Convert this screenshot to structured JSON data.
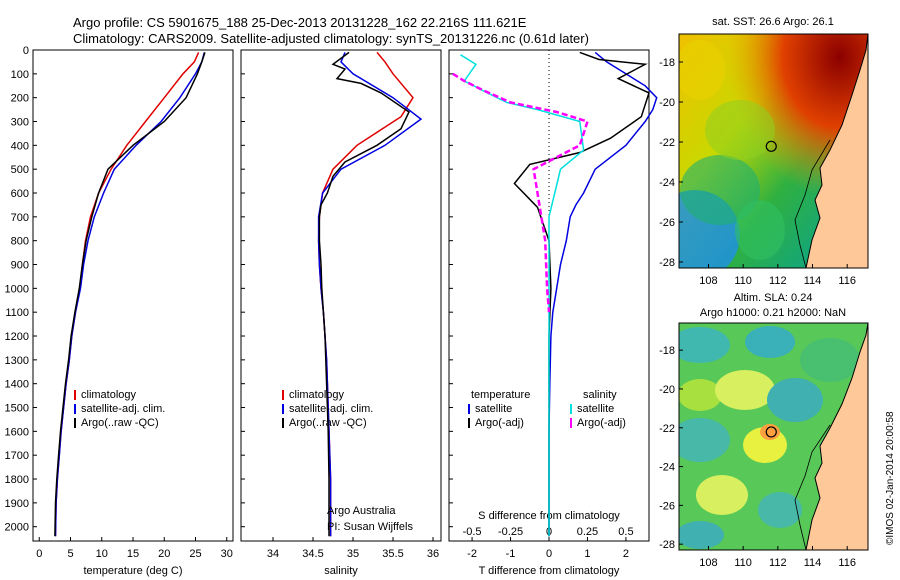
{
  "header": {
    "line1": "Argo profile: CS 5901675_188 25-Dec-2013 20131228_162 22.216S 111.621E",
    "line2": "Climatology: CARS2009. Satellite-adjusted climatology: synTS_20131226.nc (0.61d later)"
  },
  "colors": {
    "clim": "#e00000",
    "sat": "#0000e0",
    "argo": "#000000",
    "sat_s": "#00e0e0",
    "argo_s": "#ff00ff"
  },
  "chart_data": [
    {
      "type": "line",
      "xlabel": "temperature (deg C)",
      "xlim": [
        -1,
        31
      ],
      "ylim": [
        2060,
        0
      ],
      "xticks": [
        "0",
        "5",
        "10",
        "15",
        "20",
        "25",
        "30"
      ],
      "xtick_values": [
        0,
        5,
        10,
        15,
        20,
        25,
        30
      ],
      "yticks": [
        "0",
        "100",
        "200",
        "300",
        "400",
        "500",
        "600",
        "700",
        "800",
        "900",
        "1000",
        "1100",
        "1200",
        "1300",
        "1400",
        "1500",
        "1600",
        "1700",
        "1800",
        "1900",
        "2000"
      ],
      "legend": [
        "climatology",
        "satellite-adj. clim.",
        "Argo(..raw -QC)"
      ],
      "series": [
        {
          "name": "climatology",
          "x": [
            25.5,
            24.8,
            23,
            20,
            17,
            14,
            11.5,
            9.5,
            8.2,
            7.4,
            6.9,
            6.5,
            5.8,
            5.2,
            4.8,
            4.3,
            3.9,
            3.5,
            3.2,
            2.9,
            2.7,
            2.6
          ],
          "y": [
            10,
            50,
            100,
            200,
            300,
            400,
            500,
            600,
            700,
            800,
            900,
            1000,
            1100,
            1200,
            1300,
            1400,
            1500,
            1600,
            1700,
            1800,
            1900,
            2040
          ]
        },
        {
          "name": "satellite-adj. clim.",
          "x": [
            26.4,
            26,
            25,
            22.5,
            19.5,
            15.5,
            12,
            10.3,
            8.8,
            7.8,
            7.1,
            6.6,
            5.8,
            5.2,
            4.8,
            4.3,
            3.9,
            3.5,
            3.2,
            2.9,
            2.7,
            2.6
          ],
          "y": [
            10,
            50,
            100,
            200,
            300,
            400,
            500,
            600,
            700,
            800,
            900,
            1000,
            1100,
            1200,
            1300,
            1400,
            1500,
            1600,
            1700,
            1800,
            1900,
            2040
          ]
        },
        {
          "name": "Argo(..raw -QC)",
          "x": [
            26.5,
            26,
            25.3,
            23.5,
            20,
            15,
            11,
            9.5,
            8.4,
            7.5,
            6.9,
            6.4,
            5.7,
            5.1,
            4.7,
            4.2,
            3.8,
            3.4,
            3.1,
            2.8,
            2.6,
            2.5
          ],
          "y": [
            10,
            50,
            100,
            200,
            300,
            400,
            500,
            600,
            700,
            800,
            900,
            1000,
            1100,
            1200,
            1300,
            1400,
            1500,
            1600,
            1700,
            1800,
            1900,
            2040
          ]
        }
      ]
    },
    {
      "type": "line",
      "xlabel": "salinity",
      "xlim": [
        33.6,
        36.1
      ],
      "ylim": [
        2060,
        0
      ],
      "xticks": [
        "34",
        "34.5",
        "35",
        "35.5",
        "36"
      ],
      "xtick_values": [
        34,
        34.5,
        35,
        35.5,
        36
      ],
      "legend": [
        "climatology",
        "satellite-adj. clim.",
        "Argo(..raw -QC)"
      ],
      "annotations": [
        "Argo Australia",
        "PI: Susan Wijffels"
      ],
      "series": [
        {
          "name": "climatology",
          "x": [
            35.3,
            35.4,
            35.5,
            35.75,
            35.6,
            35.05,
            34.75,
            34.62,
            34.58,
            34.57,
            34.58,
            34.6,
            34.63,
            34.65,
            34.67,
            34.68,
            34.69,
            34.7,
            34.71,
            34.72,
            34.72,
            34.72
          ],
          "y": [
            10,
            50,
            100,
            200,
            280,
            400,
            500,
            600,
            700,
            800,
            900,
            1000,
            1100,
            1200,
            1300,
            1400,
            1500,
            1600,
            1700,
            1800,
            1900,
            2040
          ]
        },
        {
          "name": "satellite-adj. clim.",
          "x": [
            34.9,
            34.85,
            35.0,
            35.5,
            35.85,
            35.4,
            34.85,
            34.62,
            34.57,
            34.57,
            34.58,
            34.6,
            34.63,
            34.65,
            34.67,
            34.68,
            34.69,
            34.7,
            34.71,
            34.72,
            34.72,
            34.72
          ],
          "y": [
            10,
            50,
            100,
            200,
            290,
            400,
            500,
            600,
            700,
            800,
            900,
            1000,
            1100,
            1200,
            1300,
            1400,
            1500,
            1600,
            1700,
            1800,
            1900,
            2040
          ]
        },
        {
          "name": "Argo(..raw -QC)",
          "x": [
            34.95,
            34.75,
            34.9,
            34.8,
            35.1,
            35.35,
            35.7,
            35.6,
            35.3,
            34.9,
            34.75,
            34.68,
            34.6,
            34.58,
            34.58,
            34.6,
            34.61,
            34.63,
            34.65,
            34.66,
            34.67,
            34.68,
            34.69,
            34.7,
            34.7
          ],
          "y": [
            10,
            60,
            80,
            120,
            140,
            180,
            260,
            330,
            400,
            470,
            530,
            600,
            650,
            700,
            800,
            900,
            1000,
            1100,
            1200,
            1300,
            1400,
            1500,
            1600,
            1800,
            2040
          ]
        }
      ]
    },
    {
      "type": "line",
      "xlabel": "T difference from climatology",
      "xlabel2": "S difference from climatology",
      "xlim": [
        -2.6,
        2.6
      ],
      "ylim": [
        2060,
        0
      ],
      "xticks_bottom": [
        "-2",
        "-1",
        "0",
        "1",
        "2"
      ],
      "xtick_values_bottom": [
        -2,
        -1,
        0,
        1,
        2
      ],
      "xticks_top": [
        "-0.5",
        "-0.25",
        "0",
        "0.25",
        "0.5"
      ],
      "xtick_values_top": [
        -2,
        -1,
        0,
        1,
        2
      ],
      "legend_left": [
        "temperature",
        "satellite",
        "Argo(-adj)"
      ],
      "legend_right": [
        "salinity",
        "satellite",
        "Argo(-adj)"
      ],
      "series": [
        {
          "name": "temperature satellite",
          "x": [
            1.2,
            1.5,
            2.0,
            2.5,
            2.8,
            2.7,
            2.5,
            2.0,
            1.2,
            0.9,
            0.7,
            0.55,
            0.45,
            0.3,
            0.2,
            0.1,
            0.05,
            0.02,
            0.0,
            0.0,
            0.0
          ],
          "y": [
            10,
            50,
            100,
            150,
            200,
            250,
            300,
            400,
            500,
            600,
            650,
            700,
            800,
            900,
            1000,
            1100,
            1200,
            1400,
            1600,
            1800,
            2040
          ]
        },
        {
          "name": "temperature Argo(-adj)",
          "x": [
            0.8,
            1.3,
            2.5,
            1.8,
            2.6,
            2.4,
            1.6,
            0.8,
            -0.5,
            -0.9,
            -0.3,
            0.0,
            0.05,
            0.0,
            0.0,
            0.0,
            0.0
          ],
          "y": [
            10,
            40,
            60,
            120,
            180,
            280,
            370,
            430,
            480,
            560,
            660,
            800,
            1000,
            1200,
            1500,
            1800,
            2040
          ]
        },
        {
          "name": "salinity satellite",
          "x": [
            -2.3,
            -1.9,
            -2.2,
            -1.6,
            -1.1,
            -0.3,
            0.8,
            0.9,
            0.3,
            0.0,
            0.0,
            0.0,
            0.0
          ],
          "y": [
            20,
            60,
            130,
            180,
            220,
            250,
            300,
            420,
            500,
            700,
            1000,
            1500,
            2040
          ]
        },
        {
          "name": "salinity Argo(-adj)",
          "x": [
            -2.5,
            -2.2,
            -1.7,
            -1.0,
            0.2,
            1.0,
            0.8,
            -0.4,
            -0.3,
            -0.1,
            -0.05,
            0.0
          ],
          "y": [
            100,
            130,
            170,
            220,
            260,
            300,
            400,
            500,
            600,
            800,
            1000,
            1100
          ]
        }
      ]
    }
  ],
  "map_sst": {
    "title": "sat. SST: 26.6 Argo: 26.1",
    "xticks": [
      "108",
      "110",
      "112",
      "114",
      "116"
    ],
    "yticks": [
      "-18",
      "-20",
      "-22",
      "-24",
      "-26",
      "-28"
    ],
    "xtick_values": [
      108,
      110,
      112,
      114,
      116
    ],
    "ytick_values": [
      -18,
      -20,
      -22,
      -24,
      -26,
      -28
    ],
    "lon_range": [
      106.3,
      117.2
    ],
    "lat_range": [
      -28.3,
      -16.6
    ],
    "argo_position": {
      "lon": 111.621,
      "lat": -22.216
    }
  },
  "map_sla": {
    "title1": "Altim. SLA: 0.24",
    "title2": "Argo h1000: 0.21 h2000: NaN",
    "xticks": [
      "108",
      "110",
      "112",
      "114",
      "116"
    ],
    "yticks": [
      "-18",
      "-20",
      "-22",
      "-24",
      "-26",
      "-28"
    ],
    "xtick_values": [
      108,
      110,
      112,
      114,
      116
    ],
    "ytick_values": [
      -18,
      -20,
      -22,
      -24,
      -26,
      -28
    ],
    "lon_range": [
      106.3,
      117.2
    ],
    "lat_range": [
      -28.3,
      -16.6
    ],
    "argo_position": {
      "lon": 111.621,
      "lat": -22.216
    }
  },
  "footer_stamp": "©IMOS 02-Jan-2014 20:00:58"
}
